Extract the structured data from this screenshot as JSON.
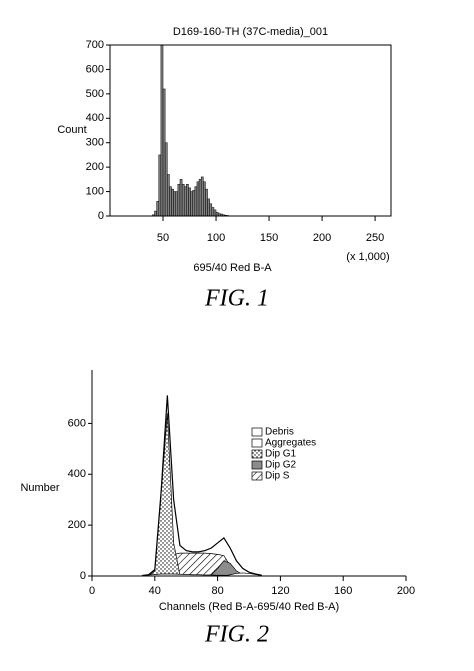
{
  "chart_data": [
    {
      "type": "histogram",
      "title": "D169-160-TH (37C-media)_001",
      "ylabel": "Count",
      "xlabel": "695/40 Red B-A",
      "annotation": "(x 1,000)",
      "caption": "FIG. 1",
      "bins": [
        40,
        42,
        44,
        46,
        48,
        50,
        52,
        54,
        56,
        58,
        60,
        62,
        64,
        66,
        68,
        70,
        72,
        74,
        76,
        78,
        80,
        82,
        84,
        86,
        88,
        90,
        92,
        94,
        96,
        98,
        100,
        102,
        104,
        106,
        108,
        110,
        112
      ],
      "values": [
        5,
        20,
        60,
        250,
        700,
        520,
        300,
        170,
        120,
        110,
        100,
        100,
        130,
        150,
        130,
        120,
        130,
        115,
        100,
        105,
        120,
        140,
        150,
        160,
        140,
        110,
        70,
        50,
        35,
        25,
        15,
        10,
        8,
        5,
        3,
        2
      ],
      "color": "#808080",
      "xlim": [
        0,
        265
      ],
      "ylim": [
        0,
        700
      ],
      "xticks": [
        50,
        100,
        150,
        200,
        250
      ],
      "yticks": [
        0,
        100,
        200,
        300,
        400,
        500,
        600,
        700
      ]
    },
    {
      "type": "area",
      "ylabel": "Number",
      "xlabel": "Channels (Red B-A-695/40 Red B-A)",
      "caption": "FIG. 2",
      "x": [
        32,
        36,
        40,
        44,
        48,
        52,
        56,
        60,
        64,
        68,
        72,
        76,
        80,
        84,
        88,
        92,
        96,
        100,
        104,
        108
      ],
      "values": [
        2,
        5,
        25,
        330,
        710,
        300,
        120,
        100,
        95,
        95,
        100,
        110,
        130,
        150,
        110,
        60,
        30,
        15,
        8,
        3
      ],
      "series": [
        {
          "name": "Debris",
          "color": "#ffffff",
          "values": [
            2,
            4,
            6,
            8,
            8,
            8,
            7,
            6,
            5,
            5,
            4,
            4,
            3,
            3,
            2,
            2,
            1,
            1,
            0,
            0
          ]
        },
        {
          "name": "Aggregates",
          "color": "#ffffff",
          "values": [
            0,
            0,
            0,
            0,
            0,
            0,
            0,
            0,
            0,
            0,
            0,
            0,
            0,
            0,
            5,
            10,
            12,
            10,
            6,
            3
          ]
        },
        {
          "name": "Dip G1",
          "color": "#e0e0e0",
          "values": [
            0,
            0,
            20,
            320,
            640,
            130,
            5,
            0,
            0,
            0,
            0,
            0,
            0,
            0,
            0,
            0,
            0,
            0,
            0,
            0
          ]
        },
        {
          "name": "Dip G2",
          "color": "#8c8c8c",
          "values": [
            0,
            0,
            0,
            0,
            0,
            0,
            0,
            0,
            0,
            0,
            0,
            5,
            30,
            60,
            50,
            20,
            5,
            0,
            0,
            0
          ]
        },
        {
          "name": "Dip S",
          "color": "#ffffff",
          "values": [
            0,
            0,
            0,
            0,
            40,
            85,
            90,
            90,
            90,
            90,
            90,
            88,
            85,
            80,
            40,
            0,
            0,
            0,
            0,
            0
          ]
        }
      ],
      "xlim": [
        0,
        200
      ],
      "ylim": [
        0,
        810
      ],
      "xticks": [
        0,
        40,
        80,
        120,
        160,
        200
      ],
      "yticks": [
        0,
        200,
        400,
        600
      ]
    }
  ]
}
